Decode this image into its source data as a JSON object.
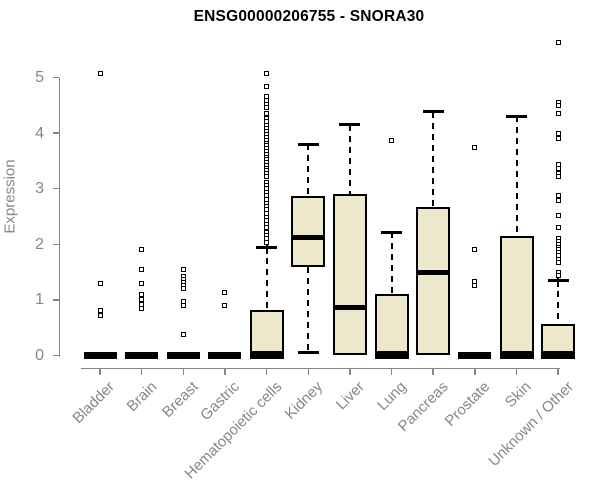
{
  "title": "ENSG00000206755 - SNORA30",
  "colors": {
    "box_fill": "#EDE8CC",
    "box_stroke": "#000000",
    "axis": "#878787",
    "title_text": "#000000"
  },
  "chart_data": {
    "type": "boxplot",
    "title": "ENSG00000206755 - SNORA30",
    "xlabel": "",
    "ylabel": "Expression",
    "ylim": [
      0,
      5
    ],
    "yticks": [
      0,
      1,
      2,
      3,
      4,
      5
    ],
    "grid": false,
    "legend": "none",
    "categories": [
      "Bladder",
      "Brain",
      "Breast",
      "Gastric",
      "Hematopoietic cells",
      "Kidney",
      "Liver",
      "Lung",
      "Pancreas",
      "Prostate",
      "Skin",
      "Unknown / Other"
    ],
    "series": [
      {
        "name": "Bladder",
        "collapsed": true,
        "q1": 0,
        "median": 0,
        "q3": 0,
        "outliers": [
          5.08,
          1.29,
          0.81,
          0.72
        ]
      },
      {
        "name": "Brain",
        "collapsed": true,
        "q1": 0,
        "median": 0,
        "q3": 0,
        "outliers": [
          1.9,
          1.55,
          1.3,
          1.09,
          1.0,
          0.92,
          0.85
        ]
      },
      {
        "name": "Breast",
        "collapsed": true,
        "q1": 0,
        "median": 0,
        "q3": 0,
        "outliers": [
          1.55,
          1.42,
          1.37,
          1.32,
          1.26,
          1.21,
          0.98,
          0.9,
          0.37
        ]
      },
      {
        "name": "Gastric",
        "collapsed": true,
        "q1": 0,
        "median": 0,
        "q3": 0,
        "outliers": [
          1.13,
          0.9
        ]
      },
      {
        "name": "Hematopoietic cells",
        "q1": 0,
        "median": 0,
        "q3": 0.81,
        "whisker_high": 1.95,
        "cross_cap": true,
        "outliers": [
          5.08,
          4.83,
          4.65,
          4.58,
          4.52,
          4.46,
          4.35,
          4.27,
          4.2,
          4.14,
          4.08,
          4.02,
          3.97,
          3.92,
          3.87,
          3.82,
          3.77,
          3.72,
          3.67,
          3.62,
          3.57,
          3.52,
          3.47,
          3.42,
          3.37,
          3.32,
          3.27,
          3.22,
          3.12,
          3.06,
          3.0,
          2.94,
          2.88,
          2.8,
          2.74,
          2.68,
          2.62,
          2.56,
          2.48,
          2.42,
          2.36,
          2.3,
          2.22,
          2.16,
          2.1,
          2.04
        ]
      },
      {
        "name": "Kidney",
        "q1": 1.6,
        "median": 2.12,
        "q3": 2.87,
        "whisker_high": 3.8,
        "whisker_low": 0.05
      },
      {
        "name": "Liver",
        "q1": 0.01,
        "median": 0.86,
        "q3": 2.9,
        "whisker_high": 4.15
      },
      {
        "name": "Lung",
        "q1": 0,
        "median": 0,
        "q3": 1.11,
        "whisker_high": 2.22,
        "outliers": [
          3.86
        ]
      },
      {
        "name": "Pancreas",
        "q1": 0.01,
        "median": 1.5,
        "q3": 2.67,
        "whisker_high": 4.38
      },
      {
        "name": "Prostate",
        "collapsed": true,
        "q1": 0,
        "median": 0,
        "q3": 0,
        "outliers": [
          3.75,
          1.9,
          1.33,
          1.26
        ]
      },
      {
        "name": "Skin",
        "q1": 0,
        "median": 0,
        "q3": 2.15,
        "whisker_high": 4.3
      },
      {
        "name": "Unknown / Other",
        "q1": 0,
        "median": 0,
        "q3": 0.57,
        "whisker_high": 1.35,
        "cross_cap": true,
        "outliers": [
          5.63,
          4.55,
          4.49,
          4.36,
          4.0,
          3.9,
          3.44,
          3.36,
          3.28,
          3.22,
          2.87,
          2.79,
          2.51,
          2.31,
          2.1,
          2.05,
          2.0,
          1.95,
          1.9,
          1.85,
          1.79,
          1.73,
          1.67,
          1.49,
          1.43
        ]
      }
    ]
  }
}
